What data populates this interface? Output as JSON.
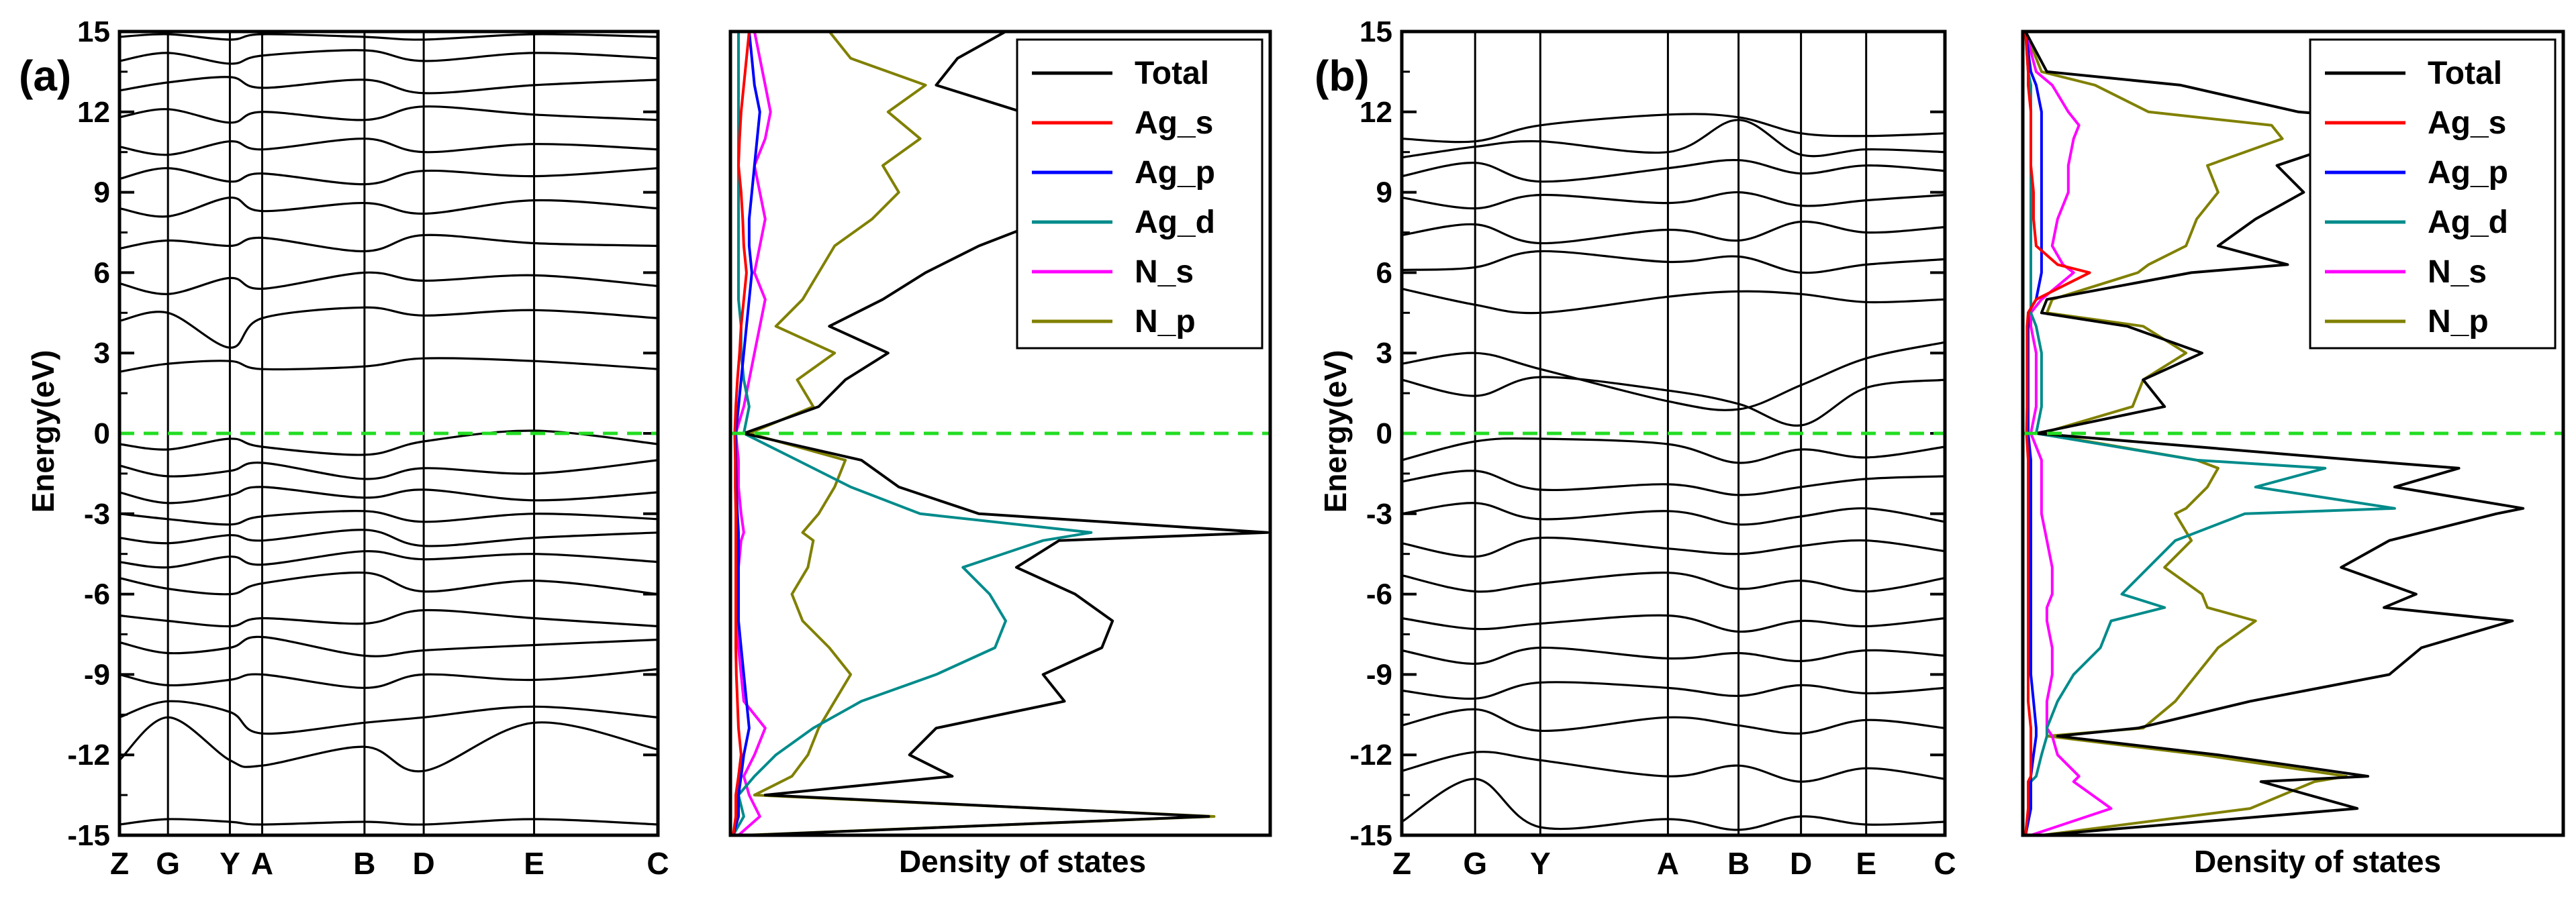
{
  "chart_data": [
    {
      "panel_label": "(a)",
      "type": "line",
      "kind": "band-structure",
      "ylabel": "Energy(eV)",
      "ylim": [
        -15,
        15
      ],
      "yticks": [
        -15,
        -12,
        -9,
        -6,
        -3,
        0,
        3,
        6,
        9,
        12,
        15
      ],
      "ytick_labels": [
        "-15",
        "-12",
        "-9",
        "-6",
        "-3",
        "0",
        "3",
        "6",
        "9",
        "12",
        "15"
      ],
      "kpoints": [
        "Z",
        "G",
        "Y",
        "A",
        "B",
        "D",
        "E",
        "C"
      ],
      "kpoint_positions": [
        0.0,
        0.09,
        0.205,
        0.265,
        0.455,
        0.565,
        0.77,
        1.0
      ],
      "fermi_level": 0,
      "band_energies_at_kpoints": [
        [
          -14.6,
          -14.4,
          -14.5,
          -14.6,
          -14.5,
          -14.6,
          -14.4,
          -14.6
        ],
        [
          -12.2,
          -10.6,
          -12.2,
          -12.4,
          -11.7,
          -12.6,
          -10.8,
          -11.8
        ],
        [
          -10.6,
          -10.0,
          -10.4,
          -11.2,
          -10.8,
          -10.6,
          -10.2,
          -10.6
        ],
        [
          -9.0,
          -9.4,
          -9.2,
          -9.0,
          -9.5,
          -9.0,
          -9.2,
          -8.8
        ],
        [
          -7.8,
          -8.2,
          -8.0,
          -7.6,
          -8.3,
          -8.1,
          -7.9,
          -7.7
        ],
        [
          -6.8,
          -7.0,
          -7.2,
          -6.9,
          -7.1,
          -6.6,
          -6.9,
          -7.2
        ],
        [
          -5.4,
          -5.8,
          -6.0,
          -5.6,
          -5.2,
          -5.9,
          -5.5,
          -6.0
        ],
        [
          -4.8,
          -5.0,
          -4.6,
          -4.9,
          -4.4,
          -4.7,
          -4.5,
          -4.8
        ],
        [
          -3.9,
          -4.1,
          -3.8,
          -4.0,
          -3.6,
          -4.2,
          -3.9,
          -3.7
        ],
        [
          -3.0,
          -3.2,
          -3.4,
          -3.1,
          -2.9,
          -3.3,
          -3.0,
          -3.2
        ],
        [
          -2.2,
          -2.6,
          -2.3,
          -2.0,
          -2.4,
          -2.1,
          -2.5,
          -2.2
        ],
        [
          -1.2,
          -1.6,
          -1.4,
          -1.1,
          -1.7,
          -1.3,
          -1.5,
          -1.0
        ],
        [
          -0.4,
          -0.6,
          -0.2,
          -0.5,
          -0.8,
          -0.3,
          0.1,
          -0.4
        ],
        [
          2.3,
          2.6,
          2.7,
          2.4,
          2.5,
          2.8,
          2.7,
          2.4
        ],
        [
          4.2,
          4.5,
          3.2,
          4.3,
          4.7,
          4.4,
          4.6,
          4.3
        ],
        [
          5.6,
          5.2,
          5.8,
          5.4,
          6.0,
          5.7,
          5.9,
          5.5
        ],
        [
          6.9,
          7.2,
          7.0,
          7.3,
          6.8,
          7.4,
          7.1,
          7.0
        ],
        [
          8.4,
          8.1,
          8.8,
          8.3,
          8.6,
          8.2,
          8.7,
          8.4
        ],
        [
          9.5,
          9.9,
          9.4,
          9.7,
          9.3,
          9.8,
          9.6,
          9.9
        ],
        [
          10.7,
          10.4,
          10.9,
          10.6,
          11.0,
          10.5,
          10.8,
          10.6
        ],
        [
          11.8,
          12.1,
          11.6,
          12.0,
          11.7,
          12.2,
          11.9,
          11.7
        ],
        [
          12.8,
          13.1,
          13.3,
          12.9,
          13.2,
          12.7,
          13.0,
          13.2
        ],
        [
          13.9,
          14.2,
          13.8,
          14.1,
          14.3,
          13.9,
          14.2,
          14.0
        ],
        [
          14.8,
          14.9,
          14.7,
          14.9,
          14.8,
          14.7,
          14.9,
          14.8
        ]
      ]
    },
    {
      "panel_label": "(a)",
      "type": "line",
      "kind": "density-of-states",
      "xlabel": "Density of states",
      "ylim": [
        -15,
        15
      ],
      "xlim": [
        0,
        10
      ],
      "fermi_level": 0,
      "legend_position": "top-right",
      "energy": [
        -15,
        -14.3,
        -13.5,
        -12.8,
        -12,
        -11,
        -10,
        -9,
        -8,
        -7,
        -6,
        -5,
        -4,
        -3.7,
        -3,
        -2,
        -1,
        0,
        1,
        2,
        3,
        4,
        5,
        6,
        7,
        8,
        9,
        10,
        11,
        12,
        13,
        14,
        15
      ],
      "series": [
        {
          "name": "Total",
          "color": "#000000",
          "values": [
            0.3,
            8.9,
            0.6,
            4.1,
            3.3,
            3.8,
            6.2,
            5.8,
            6.9,
            7.1,
            6.4,
            5.3,
            6.1,
            10.0,
            4.6,
            3.1,
            2.4,
            0.2,
            1.6,
            2.1,
            2.9,
            1.8,
            2.8,
            3.6,
            4.6,
            5.9,
            6.4,
            5.6,
            6.8,
            5.4,
            3.8,
            4.2,
            5.1
          ]
        },
        {
          "name": "Ag_s",
          "color": "#ff0000",
          "values": [
            0.0,
            0.05,
            0.05,
            0.1,
            0.15,
            0.1,
            0.08,
            0.06,
            0.05,
            0.05,
            0.05,
            0.05,
            0.05,
            0.05,
            0.05,
            0.04,
            0.04,
            0.03,
            0.05,
            0.08,
            0.12,
            0.15,
            0.2,
            0.25,
            0.2,
            0.18,
            0.15,
            0.1,
            0.12,
            0.15,
            0.2,
            0.25,
            0.3
          ]
        },
        {
          "name": "Ag_p",
          "color": "#0000ff",
          "values": [
            0.0,
            0.1,
            0.1,
            0.15,
            0.2,
            0.3,
            0.25,
            0.2,
            0.15,
            0.1,
            0.1,
            0.1,
            0.1,
            0.1,
            0.08,
            0.06,
            0.05,
            0.05,
            0.1,
            0.15,
            0.2,
            0.25,
            0.3,
            0.35,
            0.3,
            0.3,
            0.35,
            0.4,
            0.45,
            0.5,
            0.4,
            0.35,
            0.3
          ]
        },
        {
          "name": "Ag_d",
          "color": "#008b8b",
          "values": [
            0.0,
            0.2,
            0.1,
            0.4,
            0.8,
            1.5,
            2.4,
            3.8,
            4.9,
            5.1,
            4.8,
            4.3,
            5.8,
            6.7,
            3.5,
            2.2,
            1.2,
            0.2,
            0.3,
            0.2,
            0.15,
            0.15,
            0.1,
            0.1,
            0.1,
            0.1,
            0.1,
            0.1,
            0.1,
            0.1,
            0.1,
            0.1,
            0.1
          ]
        },
        {
          "name": "N_s",
          "color": "#ff00ff",
          "values": [
            0.1,
            0.5,
            0.3,
            0.2,
            0.4,
            0.6,
            0.2,
            0.15,
            0.1,
            0.1,
            0.1,
            0.1,
            0.15,
            0.2,
            0.15,
            0.1,
            0.1,
            0.05,
            0.2,
            0.3,
            0.4,
            0.5,
            0.6,
            0.4,
            0.5,
            0.6,
            0.5,
            0.4,
            0.6,
            0.7,
            0.6,
            0.5,
            0.4
          ]
        },
        {
          "name": "N_p",
          "color": "#808000",
          "values": [
            0.2,
            9.0,
            0.4,
            1.1,
            1.4,
            1.6,
            1.9,
            2.2,
            1.8,
            1.3,
            1.1,
            1.4,
            1.5,
            1.3,
            1.6,
            1.9,
            2.1,
            0.3,
            1.5,
            1.2,
            1.9,
            0.8,
            1.3,
            1.6,
            1.9,
            2.6,
            3.1,
            2.8,
            3.5,
            2.9,
            3.6,
            2.2,
            1.8
          ]
        }
      ]
    },
    {
      "panel_label": "(b)",
      "type": "line",
      "kind": "band-structure",
      "ylabel": "Energy(eV)",
      "ylim": [
        -15,
        15
      ],
      "yticks": [
        -15,
        -12,
        -9,
        -6,
        -3,
        0,
        3,
        6,
        9,
        12,
        15
      ],
      "ytick_labels": [
        "-15",
        "-12",
        "-9",
        "-6",
        "-3",
        "0",
        "3",
        "6",
        "9",
        "12",
        "15"
      ],
      "kpoints": [
        "Z",
        "G",
        "Y",
        "A",
        "B",
        "D",
        "E",
        "C"
      ],
      "kpoint_positions": [
        0.0,
        0.135,
        0.255,
        0.49,
        0.62,
        0.735,
        0.855,
        1.0
      ],
      "fermi_level": 0,
      "band_energies_at_kpoints": [
        [
          -14.5,
          -12.9,
          -14.7,
          -14.4,
          -14.8,
          -14.3,
          -14.6,
          -14.5
        ],
        [
          -12.6,
          -11.9,
          -12.2,
          -12.8,
          -12.4,
          -13.0,
          -12.5,
          -12.9
        ],
        [
          -10.9,
          -10.3,
          -11.1,
          -10.6,
          -10.9,
          -11.2,
          -10.7,
          -11.0
        ],
        [
          -9.6,
          -9.9,
          -9.3,
          -9.5,
          -9.8,
          -9.4,
          -9.7,
          -9.5
        ],
        [
          -8.1,
          -8.6,
          -8.0,
          -8.4,
          -8.2,
          -8.5,
          -8.1,
          -8.3
        ],
        [
          -6.9,
          -7.3,
          -7.1,
          -6.8,
          -7.4,
          -7.0,
          -7.2,
          -6.9
        ],
        [
          -5.3,
          -5.9,
          -5.6,
          -5.2,
          -5.8,
          -5.5,
          -5.9,
          -5.4
        ],
        [
          -4.1,
          -4.6,
          -3.9,
          -4.3,
          -4.5,
          -4.2,
          -4.0,
          -4.4
        ],
        [
          -3.0,
          -2.6,
          -3.2,
          -2.9,
          -3.4,
          -3.1,
          -2.8,
          -3.3
        ],
        [
          -1.8,
          -1.4,
          -2.1,
          -1.9,
          -2.3,
          -2.0,
          -1.7,
          -1.6
        ],
        [
          -1.0,
          -0.3,
          -0.2,
          -0.4,
          -1.1,
          -0.6,
          -0.9,
          -0.5
        ],
        [
          2.0,
          1.4,
          2.1,
          1.6,
          1.1,
          0.3,
          1.7,
          2.0
        ],
        [
          2.6,
          3.0,
          2.4,
          1.2,
          0.9,
          1.8,
          2.8,
          3.4
        ],
        [
          5.4,
          4.8,
          4.5,
          5.1,
          5.3,
          5.2,
          4.9,
          5.0
        ],
        [
          6.1,
          6.2,
          6.8,
          6.4,
          6.6,
          6.0,
          6.3,
          6.5
        ],
        [
          7.4,
          7.8,
          7.1,
          7.6,
          7.2,
          7.9,
          7.5,
          7.7
        ],
        [
          8.8,
          8.4,
          8.9,
          8.6,
          9.0,
          8.5,
          8.7,
          8.9
        ],
        [
          9.6,
          10.1,
          9.4,
          9.9,
          10.2,
          9.7,
          10.0,
          9.8
        ],
        [
          10.3,
          10.7,
          10.9,
          10.5,
          11.7,
          10.4,
          10.6,
          10.5
        ],
        [
          11.0,
          10.9,
          11.5,
          11.9,
          11.8,
          11.2,
          11.1,
          11.2
        ]
      ]
    },
    {
      "panel_label": "(b)",
      "type": "line",
      "kind": "density-of-states",
      "xlabel": "Density of states",
      "ylim": [
        -15,
        15
      ],
      "xlim": [
        0,
        10
      ],
      "fermi_level": 0,
      "legend_position": "top-right",
      "energy": [
        -15,
        -14,
        -13,
        -12.8,
        -12,
        -11.3,
        -11,
        -10,
        -9,
        -8,
        -7,
        -6.5,
        -6,
        -5,
        -4,
        -3,
        -2.8,
        -2,
        -1.3,
        -1,
        0,
        1,
        2,
        3,
        4,
        4.5,
        5,
        6,
        6.3,
        7,
        8,
        9,
        10,
        11,
        11.5,
        12,
        13,
        13.5,
        15
      ],
      "series": [
        {
          "name": "Total",
          "color": "#000000",
          "values": [
            0.3,
            6.2,
            4.4,
            6.4,
            3.6,
            0.6,
            2.1,
            4.2,
            6.8,
            7.4,
            9.1,
            6.7,
            7.3,
            5.9,
            6.8,
            8.8,
            9.3,
            6.9,
            8.1,
            6.2,
            0.2,
            2.6,
            2.2,
            3.3,
            1.9,
            0.3,
            0.4,
            3.1,
            4.9,
            3.6,
            4.3,
            5.2,
            4.7,
            6.2,
            8.2,
            5.1,
            2.9,
            0.4,
            0.0
          ]
        },
        {
          "name": "Ag_s",
          "color": "#ff0000",
          "values": [
            0.0,
            0.05,
            0.05,
            0.1,
            0.1,
            0.1,
            0.1,
            0.05,
            0.05,
            0.05,
            0.05,
            0.05,
            0.05,
            0.05,
            0.05,
            0.05,
            0.05,
            0.05,
            0.05,
            0.05,
            0.02,
            0.03,
            0.03,
            0.03,
            0.03,
            0.05,
            0.2,
            1.2,
            0.6,
            0.2,
            0.15,
            0.15,
            0.1,
            0.1,
            0.1,
            0.1,
            0.05,
            0.05,
            0.0
          ]
        },
        {
          "name": "Ag_p",
          "color": "#0000ff",
          "values": [
            0.0,
            0.1,
            0.1,
            0.1,
            0.15,
            0.2,
            0.2,
            0.15,
            0.1,
            0.1,
            0.1,
            0.1,
            0.1,
            0.1,
            0.1,
            0.1,
            0.1,
            0.1,
            0.1,
            0.1,
            0.05,
            0.05,
            0.05,
            0.05,
            0.05,
            0.05,
            0.2,
            0.3,
            0.3,
            0.3,
            0.3,
            0.3,
            0.3,
            0.3,
            0.3,
            0.3,
            0.2,
            0.1,
            0.0
          ]
        },
        {
          "name": "Ag_d",
          "color": "#008b8b",
          "values": [
            0.0,
            0.1,
            0.1,
            0.2,
            0.3,
            0.4,
            0.4,
            0.6,
            0.9,
            1.4,
            1.6,
            2.6,
            1.8,
            2.3,
            2.8,
            4.1,
            6.9,
            4.3,
            5.6,
            3.2,
            0.2,
            0.3,
            0.3,
            0.3,
            0.2,
            0.1,
            0.1,
            0.1,
            0.1,
            0.1,
            0.1,
            0.1,
            0.1,
            0.1,
            0.1,
            0.1,
            0.1,
            0.05,
            0.0
          ]
        },
        {
          "name": "N_s",
          "color": "#ff00ff",
          "values": [
            0.1,
            1.6,
            0.9,
            1.0,
            0.6,
            0.5,
            0.4,
            0.4,
            0.5,
            0.5,
            0.4,
            0.4,
            0.5,
            0.5,
            0.4,
            0.3,
            0.3,
            0.3,
            0.3,
            0.3,
            0.1,
            0.2,
            0.2,
            0.2,
            0.1,
            0.1,
            0.3,
            0.9,
            0.7,
            0.5,
            0.6,
            0.8,
            0.8,
            0.9,
            1.0,
            0.8,
            0.5,
            0.2,
            0.0
          ]
        },
        {
          "name": "N_p",
          "color": "#808000",
          "values": [
            0.3,
            4.2,
            5.4,
            6.0,
            3.3,
            0.4,
            2.2,
            2.8,
            3.2,
            3.6,
            4.3,
            3.4,
            3.3,
            2.6,
            3.1,
            2.8,
            3.0,
            3.4,
            3.6,
            3.2,
            0.3,
            2.0,
            2.2,
            3.0,
            2.2,
            0.4,
            0.5,
            2.1,
            2.3,
            3.0,
            3.2,
            3.6,
            3.4,
            4.8,
            4.6,
            2.3,
            1.3,
            0.3,
            0.0
          ]
        }
      ]
    }
  ]
}
